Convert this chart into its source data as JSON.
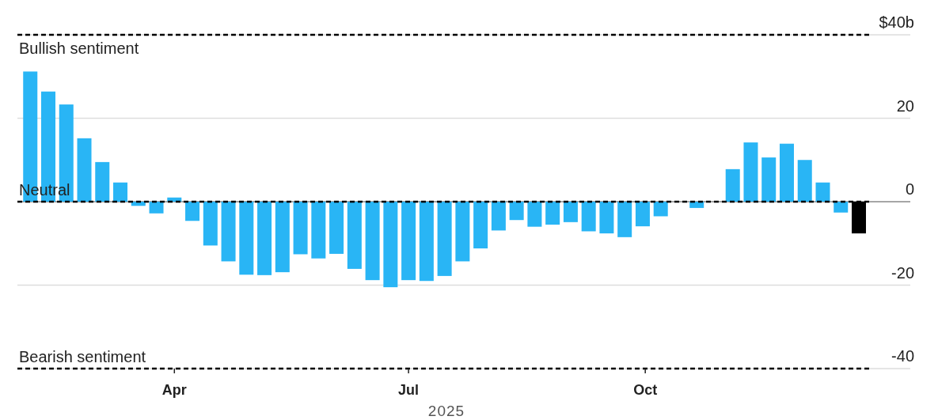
{
  "chart_data": {
    "type": "bar",
    "x": [
      "2025-02-04",
      "2025-02-11",
      "2025-02-18",
      "2025-02-25",
      "2025-03-04",
      "2025-03-11",
      "2025-03-18",
      "2025-03-25",
      "2025-04-01",
      "2025-04-08",
      "2025-04-15",
      "2025-04-22",
      "2025-04-29",
      "2025-05-06",
      "2025-05-13",
      "2025-05-20",
      "2025-05-27",
      "2025-06-03",
      "2025-06-10",
      "2025-06-17",
      "2025-06-24",
      "2025-07-01",
      "2025-07-08",
      "2025-07-15",
      "2025-07-22",
      "2025-07-29",
      "2025-08-05",
      "2025-08-12",
      "2025-08-19",
      "2025-08-26",
      "2025-09-02",
      "2025-09-09",
      "2025-09-16",
      "2025-09-23",
      "2025-09-30",
      "2025-10-07",
      "2025-10-14",
      "2025-10-21",
      "2025-10-28",
      "2025-11-04",
      "2025-11-11",
      "2025-11-18",
      "2025-11-25",
      "2025-12-02",
      "2025-12-09",
      "2025-12-16",
      "2025-12-23"
    ],
    "values": [
      31.2,
      26.4,
      23.3,
      15.2,
      9.5,
      4.6,
      -1,
      -2.8,
      1,
      -4.6,
      -10.5,
      -14.3,
      -17.5,
      -17.6,
      -16.9,
      -12.6,
      -13.6,
      -12.5,
      -16.1,
      -18.8,
      -20.5,
      -18.8,
      -19,
      -17.8,
      -14.3,
      -11.2,
      -6.9,
      -4.4,
      -6,
      -5.5,
      -4.9,
      -7.1,
      -7.6,
      -8.5,
      -5.9,
      -3.5,
      null,
      -1.5,
      null,
      7.8,
      14.2,
      10.6,
      13.9,
      10,
      4.6,
      -2.6,
      -7.6
    ],
    "colors": [
      "#29b5f5",
      "#29b5f5",
      "#29b5f5",
      "#29b5f5",
      "#29b5f5",
      "#29b5f5",
      "#29b5f5",
      "#29b5f5",
      "#29b5f5",
      "#29b5f5",
      "#29b5f5",
      "#29b5f5",
      "#29b5f5",
      "#29b5f5",
      "#29b5f5",
      "#29b5f5",
      "#29b5f5",
      "#29b5f5",
      "#29b5f5",
      "#29b5f5",
      "#29b5f5",
      "#29b5f5",
      "#29b5f5",
      "#29b5f5",
      "#29b5f5",
      "#29b5f5",
      "#29b5f5",
      "#29b5f5",
      "#29b5f5",
      "#29b5f5",
      "#29b5f5",
      "#29b5f5",
      "#29b5f5",
      "#29b5f5",
      "#29b5f5",
      "#29b5f5",
      "#29b5f5",
      "#29b5f5",
      "#29b5f5",
      "#29b5f5",
      "#29b5f5",
      "#29b5f5",
      "#29b5f5",
      "#29b5f5",
      "#29b5f5",
      "#29b5f5",
      "#000000"
    ],
    "xlabel": "2025",
    "xlim": [
      "2025-01-30",
      "2025-12-27"
    ],
    "xticks": [
      {
        "value": "2025-04-01",
        "label": "Apr"
      },
      {
        "value": "2025-07-01",
        "label": "Jul"
      },
      {
        "value": "2025-10-01",
        "label": "Oct"
      }
    ],
    "ylim": [
      -40,
      40
    ],
    "yticks": [
      {
        "value": 40,
        "label": "$40b"
      },
      20,
      0,
      -20,
      -40
    ],
    "grid": "y",
    "ref_lines": [
      {
        "axis": "y",
        "value": 40,
        "label": "Bullish sentiment",
        "color": "#000000",
        "line_style": "dashed"
      },
      {
        "axis": "y",
        "value": 0,
        "label": "Neutral",
        "color": "#000000",
        "line_style": "dashed"
      },
      {
        "axis": "y",
        "value": -40,
        "label": "Bearish sentiment",
        "color": "#000000",
        "line_style": "dashed"
      }
    ]
  }
}
